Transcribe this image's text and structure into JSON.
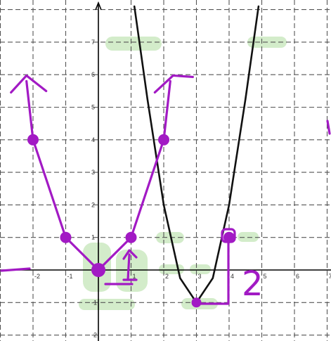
{
  "chart_data": {
    "type": "line",
    "title": "",
    "xlabel": "",
    "ylabel": "",
    "xlim": [
      -3,
      7
    ],
    "ylim": [
      -2,
      8
    ],
    "grid": true,
    "x_ticks": [
      {
        "value": -2,
        "label": "-2"
      },
      {
        "value": -1,
        "label": "-1"
      },
      {
        "value": 0,
        "label": "0"
      },
      {
        "value": 1,
        "label": "1"
      },
      {
        "value": 2,
        "label": "2"
      },
      {
        "value": 3,
        "label": "3"
      },
      {
        "value": 4,
        "label": "4"
      },
      {
        "value": 5,
        "label": "5"
      },
      {
        "value": 6,
        "label": "6"
      },
      {
        "value": 7,
        "label": "7"
      }
    ],
    "y_ticks": [
      {
        "value": 7,
        "label": "7"
      },
      {
        "value": 6,
        "label": "6"
      },
      {
        "value": 5,
        "label": "5"
      },
      {
        "value": 4,
        "label": "4"
      },
      {
        "value": 3,
        "label": "3"
      },
      {
        "value": 2,
        "label": "2"
      },
      {
        "value": 1,
        "label": "1"
      },
      {
        "value": -1,
        "label": "-1"
      },
      {
        "value": -2,
        "label": "-2"
      }
    ],
    "series": [
      {
        "color": "#111111",
        "style": "smooth parabola (printed curve)",
        "x": [
          1.1,
          1.5,
          2,
          2.5,
          3,
          3.5,
          4,
          4.5,
          4.9
        ],
        "y": [
          8.1,
          5.25,
          2,
          -0.25,
          -1,
          -0.25,
          2,
          5.25,
          8.1
        ]
      },
      {
        "color": "#a21ac4",
        "style": "hand-drawn parabola with marked points",
        "x": [
          -2.2,
          -2,
          -1,
          0,
          1,
          2,
          2.2
        ],
        "y": [
          5.8,
          4,
          1,
          0,
          1,
          4,
          5.8
        ],
        "marked_points": [
          {
            "x": -2,
            "y": 4
          },
          {
            "x": -1,
            "y": 1
          },
          {
            "x": 0,
            "y": 0
          },
          {
            "x": 1,
            "y": 1
          },
          {
            "x": 2,
            "y": 4
          },
          {
            "x": 3,
            "y": -1
          },
          {
            "x": 4,
            "y": 1
          }
        ]
      }
    ],
    "annotations": [
      {
        "text": "2",
        "color": "#a21ac4",
        "meaning": "handwritten label beside the vertical shift bracket"
      }
    ]
  },
  "colors": {
    "grid": "#555555",
    "axes": "#000000",
    "printed_curve": "#111111",
    "ink": "#a21ac4",
    "highlighter": "#9ed48a"
  }
}
